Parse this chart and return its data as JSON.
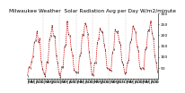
{
  "title": "Milwaukee Weather  Solar Radiation Avg per Day W/m2/minute",
  "title_fontsize": 4.2,
  "background_color": "#ffffff",
  "line_color": "#cc0000",
  "marker_color": "#000000",
  "grid_color": "#999999",
  "ylim": [
    0,
    300
  ],
  "yticks": [
    50,
    100,
    150,
    200,
    250,
    300
  ],
  "ytick_fontsize": 3.2,
  "xtick_fontsize": 2.8,
  "values": [
    22,
    38,
    70,
    55,
    120,
    155,
    190,
    210,
    180,
    165,
    90,
    42,
    15,
    28,
    55,
    100,
    160,
    205,
    230,
    215,
    185,
    120,
    65,
    28,
    18,
    35,
    80,
    130,
    175,
    250,
    215,
    180,
    150,
    95,
    48,
    22,
    20,
    42,
    85,
    140,
    185,
    215,
    240,
    255,
    195,
    140,
    62,
    30,
    25,
    55,
    95,
    145,
    200,
    220,
    235,
    205,
    170,
    115,
    58,
    35,
    30,
    50,
    100,
    155,
    210,
    225,
    200,
    185,
    145,
    95,
    55,
    32,
    35,
    60,
    105,
    150,
    195,
    230,
    240,
    200,
    160,
    110,
    60,
    38,
    40,
    65,
    115,
    160,
    205,
    235,
    250,
    220,
    175,
    120,
    65,
    42
  ],
  "vline_positions": [
    12,
    24,
    36,
    48,
    60,
    72
  ],
  "n_points": 96
}
